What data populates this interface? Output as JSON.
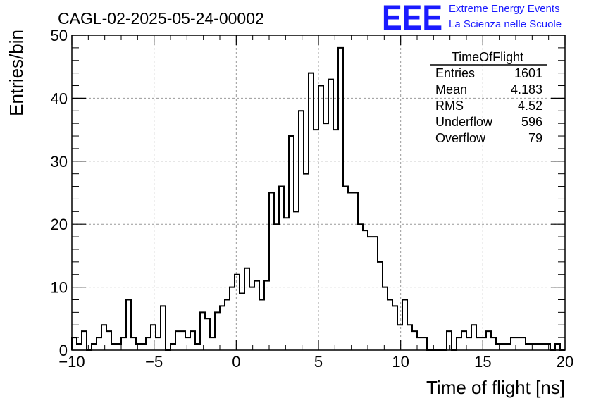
{
  "header": {
    "title": "CAGL-02-2025-05-24-00002",
    "logo": "EEE",
    "logo_line1": "Extreme Energy Events",
    "logo_line2": "La Scienza nelle Scuole",
    "logo_color": "#1a1aff"
  },
  "stats": {
    "name": "TimeOfFlight",
    "rows": [
      {
        "label": "Entries",
        "value": "1601"
      },
      {
        "label": "Mean",
        "value": "4.183"
      },
      {
        "label": "RMS",
        "value": "4.52"
      },
      {
        "label": "Underflow",
        "value": "596"
      },
      {
        "label": "Overflow",
        "value": "79"
      }
    ]
  },
  "chart_data": {
    "type": "bar",
    "histogram_style": "step",
    "xlabel": "Time of flight [ns]",
    "ylabel": "Entries/bin",
    "xlim": [
      -10,
      20
    ],
    "ylim": [
      0,
      50
    ],
    "bin_width": 0.3,
    "grid": true,
    "legend_placement": "top-right",
    "line_color": "#000000",
    "x_ticks": [
      -10,
      -5,
      0,
      5,
      10,
      15,
      20
    ],
    "x_tick_labels": [
      "−10",
      "−5",
      "0",
      "5",
      "10",
      "15",
      "20"
    ],
    "y_ticks": [
      0,
      10,
      20,
      30,
      40,
      50
    ],
    "y_tick_labels": [
      "0",
      "10",
      "20",
      "30",
      "40",
      "50"
    ],
    "bin_edges_start": -10,
    "values": [
      2,
      1,
      3,
      0,
      1,
      2,
      4,
      3,
      1,
      1,
      2,
      8,
      2,
      1,
      1,
      2,
      4,
      2,
      7,
      0,
      1,
      3,
      3,
      2,
      3,
      1,
      6,
      5,
      2,
      6,
      7,
      8,
      10,
      12,
      9,
      13,
      10,
      11,
      8,
      11,
      25,
      20,
      26,
      21,
      34,
      22,
      38,
      28,
      44,
      35,
      42,
      36,
      43,
      35,
      48,
      26,
      25,
      25,
      20,
      19,
      18,
      18,
      14,
      10,
      8,
      7,
      4,
      8,
      4,
      3,
      2,
      2,
      0,
      0,
      0,
      0,
      3,
      0,
      2,
      3,
      2,
      4,
      2,
      2,
      3,
      2,
      1,
      1,
      1,
      2,
      2,
      2,
      1,
      1,
      1,
      1,
      1,
      0,
      1,
      0
    ],
    "line_width": 2
  }
}
